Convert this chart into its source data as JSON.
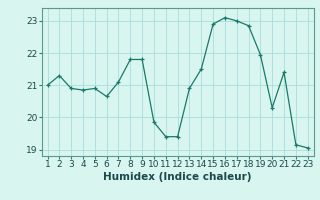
{
  "x": [
    1,
    2,
    3,
    4,
    5,
    6,
    7,
    8,
    9,
    10,
    11,
    12,
    13,
    14,
    15,
    16,
    17,
    18,
    19,
    20,
    21,
    22,
    23
  ],
  "y": [
    21.0,
    21.3,
    20.9,
    20.85,
    20.9,
    20.65,
    21.1,
    21.8,
    21.8,
    19.85,
    19.4,
    19.4,
    20.9,
    21.5,
    22.9,
    23.1,
    23.0,
    22.85,
    21.95,
    20.3,
    21.4,
    19.15,
    19.05
  ],
  "line_color": "#1a7a6a",
  "marker_color": "#1a7a6a",
  "bg_color": "#d8f5f0",
  "grid_color": "#aadddd",
  "xlabel": "Humidex (Indice chaleur)",
  "ylim": [
    18.8,
    23.4
  ],
  "xlim": [
    0.5,
    23.5
  ],
  "yticks": [
    19,
    20,
    21,
    22,
    23
  ],
  "xticks": [
    1,
    2,
    3,
    4,
    5,
    6,
    7,
    8,
    9,
    10,
    11,
    12,
    13,
    14,
    15,
    16,
    17,
    18,
    19,
    20,
    21,
    22,
    23
  ],
  "tick_fontsize": 6.5,
  "label_fontsize": 7.5
}
